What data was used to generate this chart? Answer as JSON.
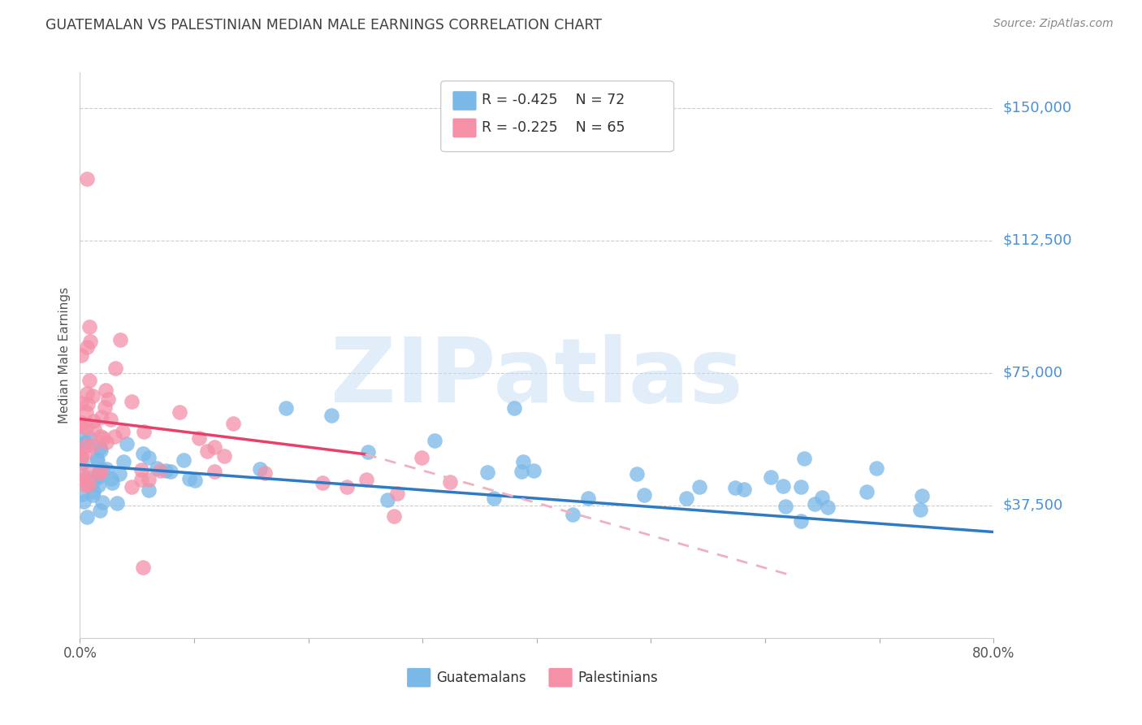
{
  "title": "GUATEMALAN VS PALESTINIAN MEDIAN MALE EARNINGS CORRELATION CHART",
  "source": "Source: ZipAtlas.com",
  "ylabel": "Median Male Earnings",
  "yticks": [
    0,
    37500,
    75000,
    112500,
    150000
  ],
  "ytick_labels": [
    "",
    "$37,500",
    "$75,000",
    "$112,500",
    "$150,000"
  ],
  "xmin": 0.0,
  "xmax": 0.8,
  "ymin": 0,
  "ymax": 160000,
  "guatemalan_color": "#7ab8e8",
  "palestinian_color": "#f490a8",
  "trend_blue": "#2e7bc4",
  "trend_pink": "#e8406a",
  "trend_dashed_color": "#f0b0c0",
  "legend_R_blue": "-0.425",
  "legend_N_blue": "72",
  "legend_R_pink": "-0.225",
  "legend_N_pink": "65",
  "legend_label_blue": "Guatemalans",
  "legend_label_pink": "Palestinians",
  "watermark": "ZIPatlas",
  "background_color": "#ffffff",
  "grid_color": "#cccccc",
  "title_color": "#404040",
  "source_color": "#888888",
  "yaxis_label_color": "#4a90d9",
  "blue_trend_x0": 0.0,
  "blue_trend_y0": 49000,
  "blue_trend_x1": 0.8,
  "blue_trend_y1": 30000,
  "pink_trend_solid_x0": 0.0,
  "pink_trend_solid_y0": 62000,
  "pink_trend_solid_x1": 0.25,
  "pink_trend_solid_y1": 52000,
  "pink_trend_dashed_x0": 0.25,
  "pink_trend_dashed_y0": 52000,
  "pink_trend_dashed_x1": 0.62,
  "pink_trend_dashed_y1": 18000
}
